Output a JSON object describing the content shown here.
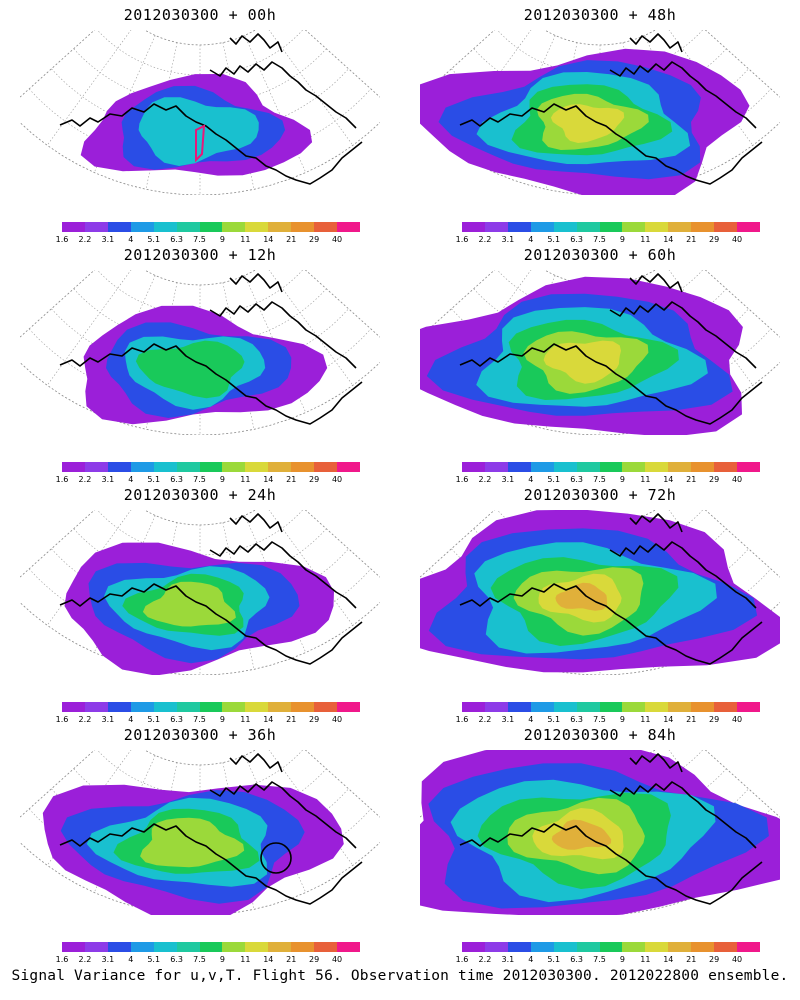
{
  "colorbar": {
    "labels": [
      "1.6",
      "2.2",
      "3.1",
      "4",
      "5.1",
      "6.3",
      "7.5",
      "9",
      "11",
      "14",
      "21",
      "29",
      "40"
    ],
    "colors": [
      "#9b1fd9",
      "#8d3be8",
      "#2a4de6",
      "#1e9ae6",
      "#19c0cf",
      "#1fc9a0",
      "#19c95a",
      "#9bd93a",
      "#d9d93a",
      "#e0b03a",
      "#e8922e",
      "#e8603a",
      "#f0188a"
    ]
  },
  "panels": [
    {
      "title": "2012030300 + 00h",
      "intensity": 0
    },
    {
      "title": "2012030300 + 48h",
      "intensity": 4
    },
    {
      "title": "2012030300 + 12h",
      "intensity": 1
    },
    {
      "title": "2012030300 + 60h",
      "intensity": 5
    },
    {
      "title": "2012030300 + 24h",
      "intensity": 2
    },
    {
      "title": "2012030300 + 72h",
      "intensity": 6
    },
    {
      "title": "2012030300 + 36h",
      "intensity": 3
    },
    {
      "title": "2012030300 + 84h",
      "intensity": 7
    }
  ],
  "footer": "Signal Variance for u,v,T. Flight 56. Observation time 2012030300. 2012022800 ensemble."
}
